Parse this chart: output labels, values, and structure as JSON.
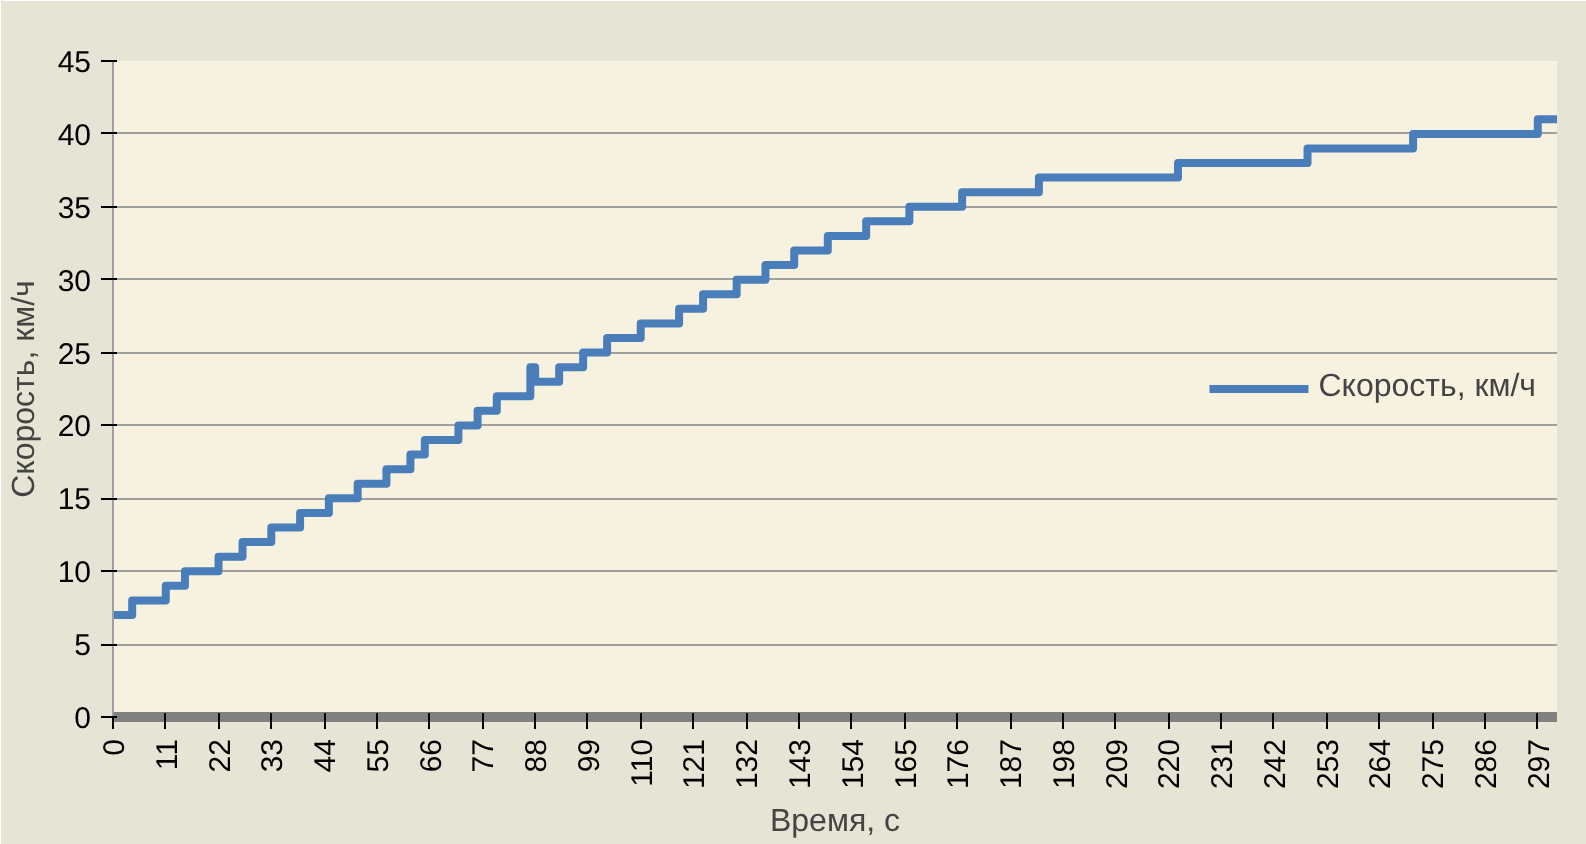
{
  "chart_data": {
    "type": "step",
    "xlabel": "Время, с",
    "ylabel": "Скорость, км/ч",
    "x": [
      0,
      4,
      11,
      15,
      22,
      27,
      33,
      39,
      45,
      51,
      57,
      62,
      65,
      72,
      76,
      80,
      87,
      88,
      93,
      98,
      103,
      110,
      118,
      123,
      130,
      136,
      142,
      149,
      157,
      166,
      177,
      193,
      222,
      249,
      271,
      297,
      301
    ],
    "series": [
      {
        "name": "Скорость, км/ч",
        "color": "#4a7ebb",
        "values": [
          7,
          8,
          9,
          10,
          11,
          12,
          13,
          14,
          15,
          16,
          17,
          18,
          19,
          20,
          21,
          22,
          24,
          23,
          24,
          25,
          26,
          27,
          28,
          29,
          30,
          31,
          32,
          33,
          34,
          35,
          36,
          37,
          38,
          39,
          40,
          41,
          41
        ]
      }
    ],
    "xlim": [
      0,
      301
    ],
    "xticks": [
      0,
      11,
      22,
      33,
      44,
      55,
      66,
      77,
      88,
      99,
      110,
      121,
      132,
      143,
      154,
      165,
      176,
      187,
      198,
      209,
      220,
      231,
      242,
      253,
      264,
      275,
      286,
      297
    ],
    "ylim": [
      0,
      45
    ],
    "yticks": [
      0,
      5,
      10,
      15,
      20,
      25,
      30,
      35,
      40,
      45
    ],
    "grid": "y",
    "legend": "right",
    "line_style": "solid"
  }
}
